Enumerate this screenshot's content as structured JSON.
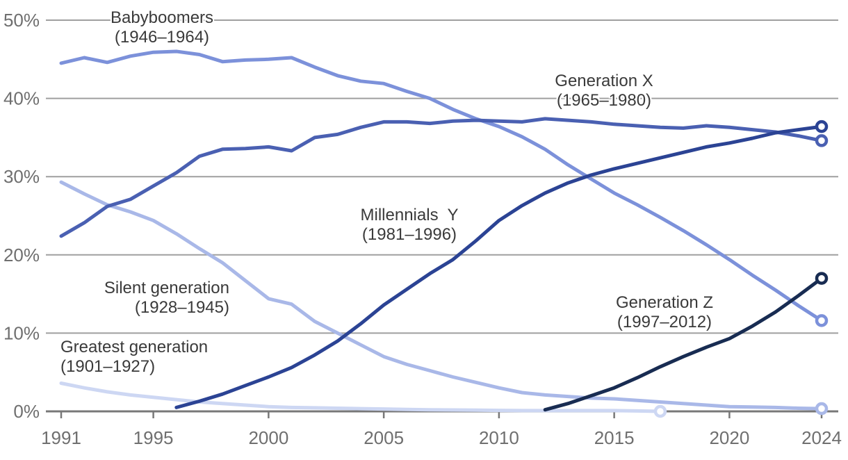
{
  "chart_data": {
    "type": "line",
    "title": "",
    "xlabel": "",
    "ylabel": "",
    "x_range": [
      1991,
      2024
    ],
    "ylim": [
      0,
      50
    ],
    "y_tick_values": [
      0,
      10,
      20,
      30,
      40,
      50
    ],
    "y_tick_suffix": "%",
    "x_ticks": [
      1991,
      1995,
      2000,
      2005,
      2010,
      2015,
      2020,
      2024
    ],
    "grid": true,
    "legend_position": "inline-annotations",
    "axis_color": "#787878",
    "gridline_color": "#9f9f9f",
    "tick_label_color": "#6f6f6f",
    "series": [
      {
        "name": "Greatest generation",
        "years_span": "(1901–1927)",
        "color": "#cdd7f3",
        "start_year": 1991,
        "end_year": 2017,
        "end_marker": true,
        "values": [
          3.6,
          3.0,
          2.5,
          2.1,
          1.8,
          1.5,
          1.2,
          1.0,
          0.8,
          0.6,
          0.5,
          0.45,
          0.4,
          0.35,
          0.3,
          0.25,
          0.2,
          0.18,
          0.15,
          0.12,
          0.1,
          0.1,
          0.1,
          0.1,
          0.1,
          0.05,
          0.0
        ]
      },
      {
        "name": "Silent generation",
        "years_span": "(1928–1945)",
        "color": "#a9b8e8",
        "start_year": 1991,
        "end_year": 2024,
        "end_marker": true,
        "values": [
          29.3,
          27.8,
          26.4,
          25.5,
          24.4,
          22.7,
          20.8,
          19.0,
          16.7,
          14.4,
          13.7,
          11.5,
          10.0,
          8.5,
          7.0,
          6.0,
          5.2,
          4.4,
          3.7,
          3.0,
          2.4,
          2.1,
          1.9,
          1.7,
          1.6,
          1.4,
          1.2,
          1.0,
          0.8,
          0.6,
          0.55,
          0.5,
          0.4,
          0.35
        ]
      },
      {
        "name": "Babyboomers",
        "years_span": "(1946–1964)",
        "color": "#7c91da",
        "start_year": 1991,
        "end_year": 2024,
        "end_marker": true,
        "values": [
          44.5,
          45.2,
          44.6,
          45.4,
          45.9,
          46.0,
          45.6,
          44.7,
          44.9,
          45.0,
          45.2,
          44.0,
          42.9,
          42.2,
          41.9,
          40.9,
          40.0,
          38.6,
          37.4,
          36.4,
          35.1,
          33.5,
          31.5,
          29.7,
          27.9,
          26.4,
          24.8,
          23.1,
          21.3,
          19.4,
          17.4,
          15.5,
          13.5,
          11.6
        ]
      },
      {
        "name": "Generation X",
        "years_span": "(1965–1980)",
        "color": "#4a60b2",
        "start_year": 1991,
        "end_year": 2024,
        "end_marker": true,
        "values": [
          22.4,
          24.1,
          26.2,
          27.1,
          28.8,
          30.5,
          32.6,
          33.5,
          33.6,
          33.8,
          33.3,
          35.0,
          35.4,
          36.3,
          37.0,
          37.0,
          36.8,
          37.1,
          37.2,
          37.1,
          37.0,
          37.4,
          37.2,
          37.0,
          36.7,
          36.5,
          36.3,
          36.2,
          36.5,
          36.3,
          36.0,
          35.7,
          35.2,
          34.6
        ]
      },
      {
        "name": "Millennials Y",
        "years_span": "(1981–1996)",
        "color": "#2b4394",
        "start_year": 1996,
        "end_year": 2024,
        "end_marker": true,
        "values": [
          0.5,
          1.3,
          2.2,
          3.3,
          4.4,
          5.6,
          7.2,
          9.0,
          11.2,
          13.6,
          15.6,
          17.6,
          19.4,
          21.8,
          24.4,
          26.3,
          27.9,
          29.2,
          30.2,
          31.0,
          31.7,
          32.4,
          33.1,
          33.8,
          34.3,
          34.9,
          35.6,
          36.0,
          36.4
        ]
      },
      {
        "name": "Generation Z",
        "years_span": "(1997–2012)",
        "color": "#182c52",
        "start_year": 2012,
        "end_year": 2024,
        "end_marker": true,
        "values": [
          0.2,
          1.0,
          2.0,
          3.0,
          4.3,
          5.7,
          7.0,
          8.2,
          9.3,
          10.9,
          12.7,
          14.8,
          17.0
        ]
      }
    ],
    "annotations": [
      {
        "line1": "Babyboomers",
        "line2": "(1946–1964)"
      },
      {
        "line1": "Generation X",
        "line2": "(1965–1980)"
      },
      {
        "line1": "Millennials  Y",
        "line2": "(1981–1996)"
      },
      {
        "line1": "Silent generation",
        "line2": "(1928–1945)"
      },
      {
        "line1": "Greatest generation",
        "line2": "(1901–1927)"
      },
      {
        "line1": "Generation Z",
        "line2": "(1997–2012)"
      }
    ]
  }
}
